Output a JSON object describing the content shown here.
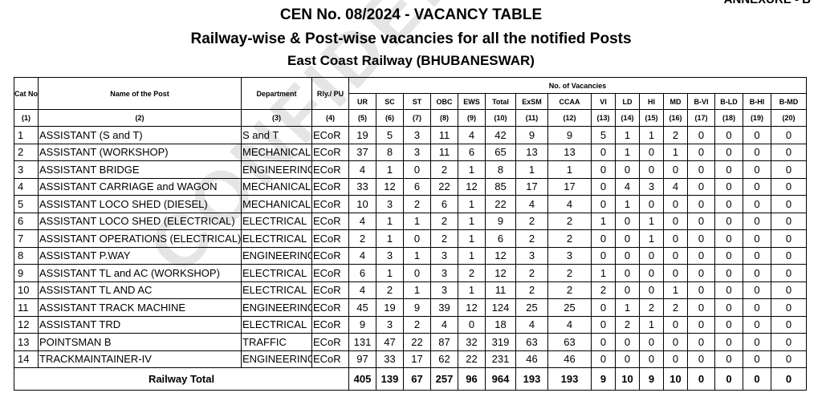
{
  "annexure": "ANNEXURE - B",
  "titles": {
    "line1": "CEN No. 08/2024 - VACANCY TABLE",
    "line2": "Railway-wise & Post-wise vacancies for all the notified Posts",
    "line3": "East Coast Railway (BHUBANESWAR)"
  },
  "watermark": "CONFIDENTIAL",
  "headers": {
    "cat_no": "Cat No",
    "name": "Name of the Post",
    "department": "Department",
    "rly": "Rly./ PU",
    "group": "No. of Vacancies",
    "cols": [
      "UR",
      "SC",
      "ST",
      "OBC",
      "EWS",
      "Total",
      "ExSM",
      "CCAA",
      "VI",
      "LD",
      "HI",
      "MD",
      "B-VI",
      "B-LD",
      "B-HI",
      "B-MD"
    ],
    "numbers": [
      "(1)",
      "(2)",
      "(3)",
      "(4)",
      "(5)",
      "(6)",
      "(7)",
      "(8)",
      "(9)",
      "(10)",
      "(11)",
      "(12)",
      "(13)",
      "(14)",
      "(15)",
      "(16)",
      "(17)",
      "(18)",
      "(19)",
      "(20)"
    ]
  },
  "rows": [
    {
      "cat": "1",
      "name": "ASSISTANT (S and T)",
      "dept": "S and T",
      "rly": "ECoR",
      "v": [
        "19",
        "5",
        "3",
        "11",
        "4",
        "42",
        "9",
        "9",
        "5",
        "1",
        "1",
        "2",
        "0",
        "0",
        "0",
        "0"
      ]
    },
    {
      "cat": "2",
      "name": "ASSISTANT (WORKSHOP)",
      "dept": "MECHANICAL",
      "rly": "ECoR",
      "v": [
        "37",
        "8",
        "3",
        "11",
        "6",
        "65",
        "13",
        "13",
        "0",
        "1",
        "0",
        "1",
        "0",
        "0",
        "0",
        "0"
      ]
    },
    {
      "cat": "3",
      "name": "ASSISTANT BRIDGE",
      "dept": "ENGINEERING",
      "rly": "ECoR",
      "v": [
        "4",
        "1",
        "0",
        "2",
        "1",
        "8",
        "1",
        "1",
        "0",
        "0",
        "0",
        "0",
        "0",
        "0",
        "0",
        "0"
      ]
    },
    {
      "cat": "4",
      "name": "ASSISTANT CARRIAGE and WAGON",
      "dept": "MECHANICAL",
      "rly": "ECoR",
      "v": [
        "33",
        "12",
        "6",
        "22",
        "12",
        "85",
        "17",
        "17",
        "0",
        "4",
        "3",
        "4",
        "0",
        "0",
        "0",
        "0"
      ]
    },
    {
      "cat": "5",
      "name": "ASSISTANT LOCO SHED (DIESEL)",
      "dept": "MECHANICAL",
      "rly": "ECoR",
      "v": [
        "10",
        "3",
        "2",
        "6",
        "1",
        "22",
        "4",
        "4",
        "0",
        "1",
        "0",
        "0",
        "0",
        "0",
        "0",
        "0"
      ]
    },
    {
      "cat": "6",
      "name": "ASSISTANT LOCO SHED (ELECTRICAL)",
      "dept": "ELECTRICAL",
      "rly": "ECoR",
      "v": [
        "4",
        "1",
        "1",
        "2",
        "1",
        "9",
        "2",
        "2",
        "1",
        "0",
        "1",
        "0",
        "0",
        "0",
        "0",
        "0"
      ]
    },
    {
      "cat": "7",
      "name": "ASSISTANT OPERATIONS (ELECTRICAL)",
      "dept": "ELECTRICAL",
      "rly": "ECoR",
      "v": [
        "2",
        "1",
        "0",
        "2",
        "1",
        "6",
        "2",
        "2",
        "0",
        "0",
        "1",
        "0",
        "0",
        "0",
        "0",
        "0"
      ]
    },
    {
      "cat": "8",
      "name": "ASSISTANT P.WAY",
      "dept": "ENGINEERING",
      "rly": "ECoR",
      "v": [
        "4",
        "3",
        "1",
        "3",
        "1",
        "12",
        "3",
        "3",
        "0",
        "0",
        "0",
        "0",
        "0",
        "0",
        "0",
        "0"
      ]
    },
    {
      "cat": "9",
      "name": "ASSISTANT TL and AC (WORKSHOP)",
      "dept": "ELECTRICAL",
      "rly": "ECoR",
      "v": [
        "6",
        "1",
        "0",
        "3",
        "2",
        "12",
        "2",
        "2",
        "1",
        "0",
        "0",
        "0",
        "0",
        "0",
        "0",
        "0"
      ]
    },
    {
      "cat": "10",
      "name": "ASSISTANT TL AND AC",
      "dept": "ELECTRICAL",
      "rly": "ECoR",
      "v": [
        "4",
        "2",
        "1",
        "3",
        "1",
        "11",
        "2",
        "2",
        "2",
        "0",
        "0",
        "1",
        "0",
        "0",
        "0",
        "0"
      ]
    },
    {
      "cat": "11",
      "name": "ASSISTANT TRACK MACHINE",
      "dept": "ENGINEERING",
      "rly": "ECoR",
      "v": [
        "45",
        "19",
        "9",
        "39",
        "12",
        "124",
        "25",
        "25",
        "0",
        "1",
        "2",
        "2",
        "0",
        "0",
        "0",
        "0"
      ]
    },
    {
      "cat": "12",
      "name": "ASSISTANT TRD",
      "dept": "ELECTRICAL",
      "rly": "ECoR",
      "v": [
        "9",
        "3",
        "2",
        "4",
        "0",
        "18",
        "4",
        "4",
        "0",
        "2",
        "1",
        "0",
        "0",
        "0",
        "0",
        "0"
      ]
    },
    {
      "cat": "13",
      "name": "POINTSMAN B",
      "dept": "TRAFFIC",
      "rly": "ECoR",
      "v": [
        "131",
        "47",
        "22",
        "87",
        "32",
        "319",
        "63",
        "63",
        "0",
        "0",
        "0",
        "0",
        "0",
        "0",
        "0",
        "0"
      ]
    },
    {
      "cat": "14",
      "name": "TRACKMAINTAINER-IV",
      "dept": "ENGINEERING",
      "rly": "ECoR",
      "v": [
        "97",
        "33",
        "17",
        "62",
        "22",
        "231",
        "46",
        "46",
        "0",
        "0",
        "0",
        "0",
        "0",
        "0",
        "0",
        "0"
      ]
    }
  ],
  "total": {
    "label": "Railway Total",
    "v": [
      "405",
      "139",
      "67",
      "257",
      "96",
      "964",
      "193",
      "193",
      "9",
      "10",
      "9",
      "10",
      "0",
      "0",
      "0",
      "0"
    ]
  }
}
